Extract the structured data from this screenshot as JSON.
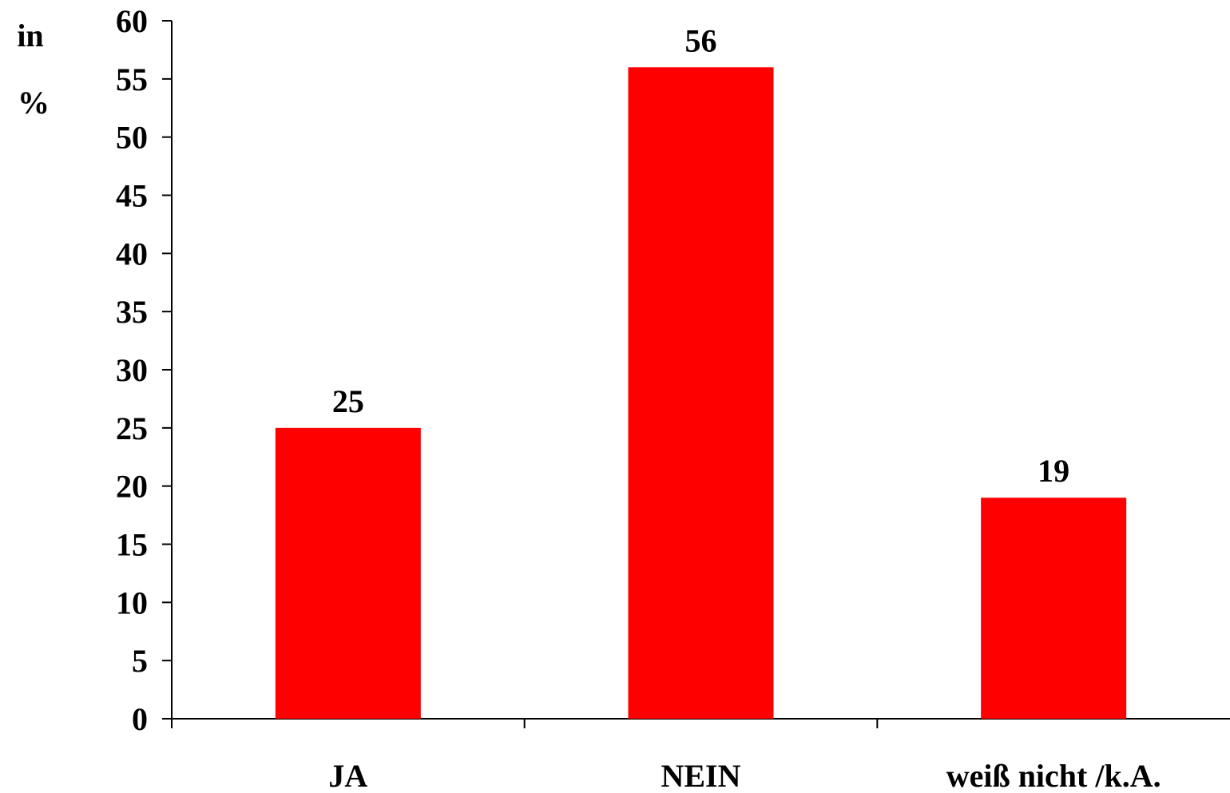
{
  "chart_data": {
    "type": "bar",
    "title": "",
    "xlabel": "",
    "ylabel_lines": [
      "in",
      "%"
    ],
    "categories": [
      "JA",
      "NEIN",
      "weiß nicht /k.A."
    ],
    "values": [
      25,
      56,
      19
    ],
    "data_labels": [
      "25",
      "56",
      "19"
    ],
    "ylim": [
      0,
      60
    ],
    "yticks": [
      0,
      5,
      10,
      15,
      20,
      25,
      30,
      35,
      40,
      45,
      50,
      55,
      60
    ],
    "grid": false,
    "legend": "none",
    "colors": {
      "bar": "#ff0000",
      "axis": "#000000",
      "text": "#000000"
    }
  }
}
